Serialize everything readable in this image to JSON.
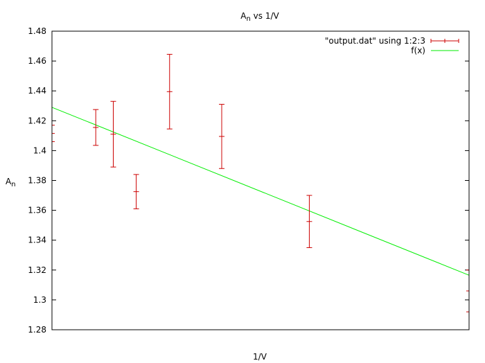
{
  "chart_data": {
    "type": "scatter",
    "title": "A_n vs 1/V",
    "title_main": "A",
    "title_sub": "n",
    "title_rest": " vs 1/V",
    "xlabel": "1/V",
    "ylabel_main": "A",
    "ylabel_sub": "n",
    "xlim": [
      0,
      1
    ],
    "ylim": [
      1.28,
      1.48
    ],
    "x_ticks_labeled": false,
    "y_ticks": [
      "1.28",
      "1.3",
      "1.32",
      "1.34",
      "1.36",
      "1.38",
      "1.4",
      "1.42",
      "1.44",
      "1.46",
      "1.48"
    ],
    "legend_position": "top-right",
    "series": [
      {
        "name": "\"output.dat\" using 1:2:3",
        "kind": "errorbars",
        "color": "#cc0000",
        "points": [
          {
            "x": 0.0,
            "y": 1.4115,
            "err": 0.0055
          },
          {
            "x": 0.105,
            "y": 1.4155,
            "err": 0.012
          },
          {
            "x": 0.147,
            "y": 1.411,
            "err": 0.022
          },
          {
            "x": 0.202,
            "y": 1.3725,
            "err": 0.0115
          },
          {
            "x": 0.282,
            "y": 1.4395,
            "err": 0.025
          },
          {
            "x": 0.407,
            "y": 1.4095,
            "err": 0.0215
          },
          {
            "x": 0.617,
            "y": 1.3525,
            "err": 0.0175
          },
          {
            "x": 1.0,
            "y": 1.306,
            "err": 0.014
          }
        ]
      },
      {
        "name": "f(x)",
        "kind": "line",
        "color": "#00ee00",
        "points": [
          {
            "x": 0.0,
            "y": 1.429
          },
          {
            "x": 1.0,
            "y": 1.3165
          }
        ]
      }
    ]
  }
}
